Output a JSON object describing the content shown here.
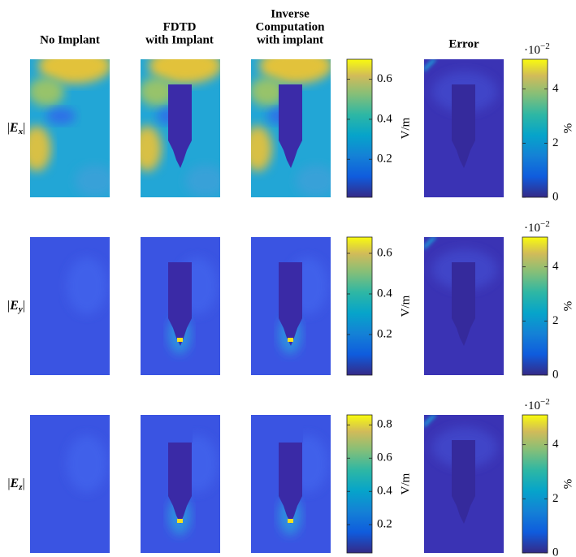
{
  "column_titles": [
    [
      "No Implant"
    ],
    [
      "FDTD",
      "with Implant"
    ],
    [
      "Inverse",
      "Computation",
      "with implant"
    ],
    [
      "Error"
    ]
  ],
  "rows": [
    {
      "label": {
        "open": "|",
        "symbol": "E",
        "subscript": "x",
        "close": "|"
      },
      "field_colorbar": {
        "unit": "V/m",
        "lim": [
          0.01,
          0.7
        ],
        "ticks": [
          0.2,
          0.4,
          0.6
        ]
      },
      "error_colorbar": {
        "unit": "%",
        "multiplier_base": "·10",
        "multiplier_exp": "−2",
        "lim": [
          0,
          5.1
        ],
        "ticks": [
          0,
          2,
          4
        ]
      }
    },
    {
      "label": {
        "open": "|",
        "symbol": "E",
        "subscript": "y",
        "close": "|"
      },
      "field_colorbar": {
        "unit": "V/m",
        "lim": [
          0,
          0.68
        ],
        "ticks": [
          0.2,
          0.4,
          0.6
        ]
      },
      "error_colorbar": {
        "unit": "%",
        "multiplier_base": "·10",
        "multiplier_exp": "−2",
        "lim": [
          0,
          5.1
        ],
        "ticks": [
          0,
          2,
          4
        ]
      }
    },
    {
      "label": {
        "open": "|",
        "symbol": "E",
        "subscript": "z",
        "close": "|"
      },
      "field_colorbar": {
        "unit": "V/m",
        "lim": [
          0.03,
          0.86
        ],
        "ticks": [
          0.2,
          0.4,
          0.6,
          0.8
        ]
      },
      "error_colorbar": {
        "unit": "%",
        "multiplier_base": "·10",
        "multiplier_exp": "−2",
        "lim": [
          0,
          5.1
        ],
        "ticks": [
          0,
          2,
          4
        ]
      }
    }
  ]
}
